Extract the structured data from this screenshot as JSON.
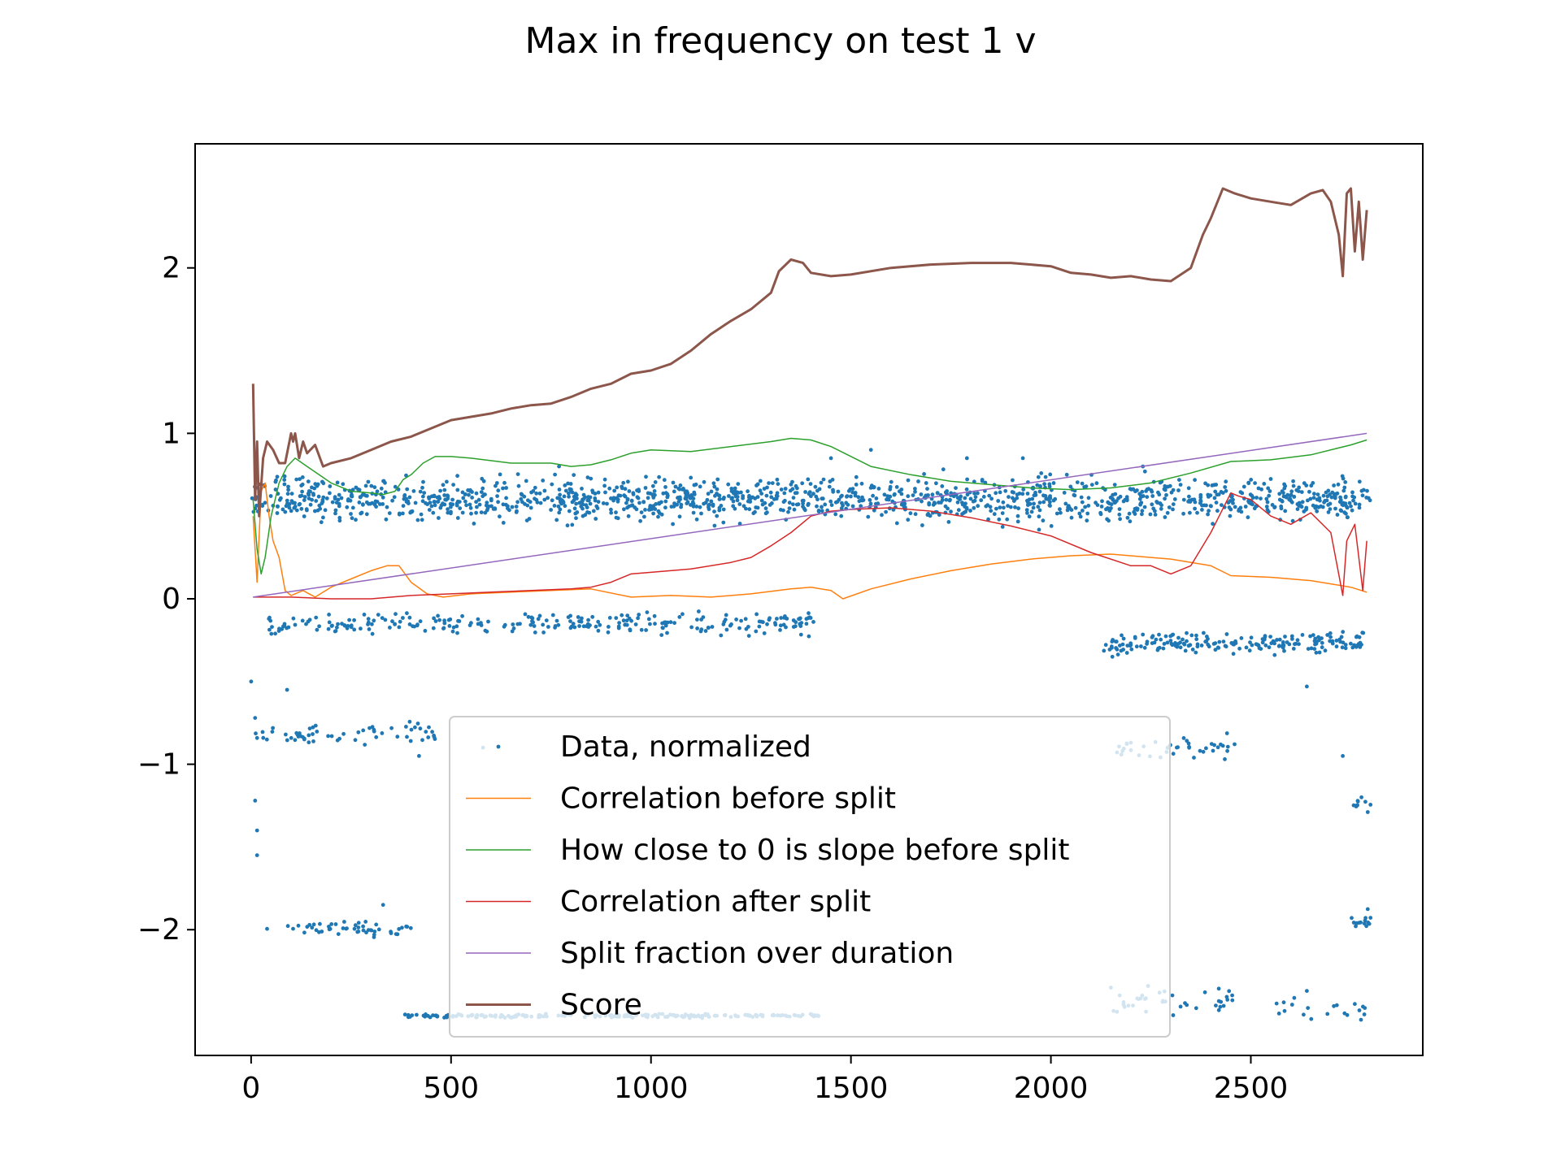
{
  "chart_data": {
    "type": "line",
    "title": "Max in frequency on test 1 v",
    "xlabel": "",
    "ylabel": "",
    "xlim": [
      -140,
      2930
    ],
    "ylim": [
      -2.76,
      2.75
    ],
    "x_ticks": [
      0,
      500,
      1000,
      1500,
      2000,
      2500
    ],
    "x_tick_labels": [
      "0",
      "500",
      "1000",
      "1500",
      "2000",
      "2500"
    ],
    "y_ticks": [
      -2,
      -1,
      0,
      1,
      2
    ],
    "y_tick_labels": [
      "−2",
      "−1",
      "0",
      "1",
      "2"
    ],
    "grid": false,
    "legend_position": "lower center",
    "series": [
      {
        "name": "Data, normalized",
        "kind": "scatter",
        "color": "#1f77b4",
        "clusters": [
          {
            "x": [
              0,
              2800
            ],
            "y_center": 0.6,
            "spread": 0.06,
            "count": 1400
          },
          {
            "x": [
              40,
              1420
            ],
            "y_center": -0.15,
            "spread": 0.03,
            "count": 260
          },
          {
            "x": [
              2130,
              2800
            ],
            "y_center": -0.27,
            "spread": 0.03,
            "count": 200
          },
          {
            "x": [
              0,
              470
            ],
            "y_center": -0.82,
            "spread": 0.03,
            "count": 60
          },
          {
            "x": [
              2150,
              2460
            ],
            "y_center": -0.9,
            "spread": 0.03,
            "count": 40
          },
          {
            "x": [
              40,
              400
            ],
            "y_center": -1.99,
            "spread": 0.02,
            "count": 50
          },
          {
            "x": [
              380,
              1420
            ],
            "y_center": -2.52,
            "spread": 0.005,
            "count": 200
          },
          {
            "x": [
              2150,
              2460
            ],
            "y_center": -2.42,
            "spread": 0.04,
            "count": 40
          },
          {
            "x": [
              2560,
              2800
            ],
            "y_center": -2.47,
            "spread": 0.04,
            "count": 20
          },
          {
            "x": [
              2750,
              2800
            ],
            "y_center": -1.95,
            "spread": 0.03,
            "count": 15
          },
          {
            "x": [
              2750,
              2800
            ],
            "y_center": -1.25,
            "spread": 0.03,
            "count": 10
          }
        ],
        "outliers": [
          [
            0,
            -0.5
          ],
          [
            10,
            -0.72
          ],
          [
            10,
            -1.22
          ],
          [
            15,
            -1.4
          ],
          [
            15,
            -1.55
          ],
          [
            90,
            -0.55
          ],
          [
            330,
            -1.85
          ],
          [
            420,
            -0.95
          ],
          [
            580,
            -0.9
          ],
          [
            770,
            0.8
          ],
          [
            1450,
            0.85
          ],
          [
            1550,
            0.9
          ],
          [
            1790,
            0.85
          ],
          [
            1930,
            0.85
          ],
          [
            2040,
            0.75
          ],
          [
            2230,
            0.8
          ],
          [
            2640,
            -0.53
          ],
          [
            2730,
            -0.95
          ],
          [
            2200,
            -0.87
          ],
          [
            2150,
            -2.35
          ],
          [
            2640,
            -2.37
          ]
        ]
      },
      {
        "name": "Correlation before split",
        "kind": "line",
        "color": "#ff7f0e",
        "x": [
          5,
          15,
          25,
          35,
          45,
          55,
          70,
          85,
          100,
          130,
          160,
          200,
          250,
          300,
          340,
          370,
          400,
          440,
          480,
          550,
          650,
          750,
          850,
          950,
          1050,
          1150,
          1250,
          1350,
          1400,
          1450,
          1480,
          1550,
          1650,
          1750,
          1850,
          1950,
          2050,
          2150,
          2250,
          2300,
          2400,
          2450,
          2550,
          2650,
          2750,
          2790
        ],
        "y": [
          0.5,
          0.1,
          0.65,
          0.7,
          0.5,
          0.35,
          0.25,
          0.05,
          0.02,
          0.05,
          0.01,
          0.07,
          0.12,
          0.17,
          0.2,
          0.2,
          0.1,
          0.03,
          0.01,
          0.03,
          0.04,
          0.05,
          0.06,
          0.01,
          0.02,
          0.01,
          0.03,
          0.06,
          0.07,
          0.05,
          0.0,
          0.06,
          0.12,
          0.17,
          0.21,
          0.24,
          0.26,
          0.27,
          0.25,
          0.24,
          0.2,
          0.14,
          0.13,
          0.11,
          0.07,
          0.04
        ]
      },
      {
        "name": "How close to 0 is slope before split",
        "kind": "line",
        "color": "#2ca02c",
        "x": [
          5,
          15,
          25,
          35,
          50,
          70,
          90,
          110,
          140,
          170,
          200,
          250,
          300,
          330,
          360,
          380,
          400,
          430,
          460,
          500,
          550,
          650,
          750,
          800,
          850,
          900,
          950,
          1000,
          1100,
          1200,
          1300,
          1350,
          1400,
          1450,
          1550,
          1650,
          1750,
          1850,
          1950,
          2050,
          2150,
          2250,
          2350,
          2450,
          2550,
          2650,
          2750,
          2790
        ],
        "y": [
          0.6,
          0.3,
          0.15,
          0.25,
          0.5,
          0.7,
          0.8,
          0.85,
          0.8,
          0.75,
          0.7,
          0.65,
          0.64,
          0.63,
          0.65,
          0.72,
          0.75,
          0.82,
          0.86,
          0.86,
          0.85,
          0.82,
          0.82,
          0.8,
          0.81,
          0.84,
          0.88,
          0.9,
          0.89,
          0.92,
          0.95,
          0.97,
          0.96,
          0.92,
          0.8,
          0.75,
          0.71,
          0.69,
          0.67,
          0.66,
          0.67,
          0.7,
          0.76,
          0.83,
          0.84,
          0.87,
          0.93,
          0.96
        ]
      },
      {
        "name": "Correlation after split",
        "kind": "line",
        "color": "#d62728",
        "x": [
          5,
          50,
          100,
          200,
          300,
          400,
          500,
          600,
          700,
          800,
          850,
          900,
          950,
          1000,
          1100,
          1200,
          1250,
          1300,
          1350,
          1400,
          1450,
          1500,
          1600,
          1700,
          1800,
          1900,
          2000,
          2100,
          2200,
          2250,
          2300,
          2350,
          2400,
          2450,
          2470,
          2500,
          2550,
          2600,
          2650,
          2700,
          2730,
          2740,
          2760,
          2780,
          2790
        ],
        "y": [
          0.01,
          0.01,
          0.01,
          0.0,
          0.0,
          0.02,
          0.03,
          0.04,
          0.05,
          0.06,
          0.07,
          0.1,
          0.15,
          0.16,
          0.18,
          0.22,
          0.25,
          0.32,
          0.4,
          0.5,
          0.53,
          0.54,
          0.55,
          0.53,
          0.49,
          0.44,
          0.38,
          0.28,
          0.2,
          0.2,
          0.15,
          0.2,
          0.4,
          0.64,
          0.62,
          0.6,
          0.5,
          0.45,
          0.52,
          0.4,
          0.02,
          0.35,
          0.45,
          0.05,
          0.35
        ]
      },
      {
        "name": "Split fraction over duration",
        "kind": "line",
        "color": "#9467bd",
        "x": [
          5,
          2790
        ],
        "y": [
          0.01,
          1.0
        ]
      },
      {
        "name": "Score",
        "kind": "line",
        "color": "#8c564b",
        "x": [
          5,
          10,
          15,
          20,
          30,
          40,
          55,
          70,
          85,
          100,
          105,
          110,
          120,
          130,
          140,
          160,
          180,
          200,
          250,
          300,
          350,
          400,
          450,
          500,
          550,
          600,
          650,
          700,
          750,
          800,
          850,
          900,
          950,
          1000,
          1050,
          1100,
          1150,
          1200,
          1250,
          1300,
          1320,
          1350,
          1380,
          1400,
          1450,
          1500,
          1600,
          1700,
          1800,
          1900,
          2000,
          2050,
          2100,
          2150,
          2200,
          2250,
          2300,
          2350,
          2380,
          2400,
          2430,
          2460,
          2500,
          2550,
          2600,
          2650,
          2680,
          2700,
          2720,
          2730,
          2740,
          2750,
          2760,
          2770,
          2780,
          2790
        ],
        "y": [
          1.3,
          0.6,
          0.95,
          0.5,
          0.85,
          0.95,
          0.9,
          0.82,
          0.82,
          1.0,
          0.95,
          1.0,
          0.85,
          0.95,
          0.88,
          0.93,
          0.8,
          0.82,
          0.85,
          0.9,
          0.95,
          0.98,
          1.03,
          1.08,
          1.1,
          1.12,
          1.15,
          1.17,
          1.18,
          1.22,
          1.27,
          1.3,
          1.36,
          1.38,
          1.42,
          1.5,
          1.6,
          1.68,
          1.75,
          1.85,
          1.98,
          2.05,
          2.03,
          1.97,
          1.95,
          1.96,
          2.0,
          2.02,
          2.03,
          2.03,
          2.01,
          1.97,
          1.96,
          1.94,
          1.95,
          1.93,
          1.92,
          2.0,
          2.2,
          2.3,
          2.48,
          2.45,
          2.42,
          2.4,
          2.38,
          2.45,
          2.47,
          2.4,
          2.2,
          1.95,
          2.45,
          2.48,
          2.1,
          2.4,
          2.05,
          2.35
        ]
      }
    ]
  }
}
